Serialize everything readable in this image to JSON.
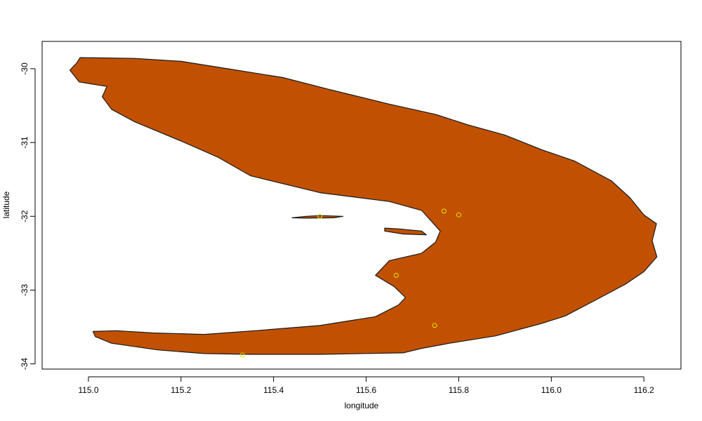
{
  "chart_data": {
    "type": "scatter",
    "title": "",
    "xlabel": "longitude",
    "ylabel": "latitude",
    "xlim": [
      114.9,
      116.28
    ],
    "ylim": [
      -34.07,
      -29.63
    ],
    "x_ticks": [
      115.0,
      115.2,
      115.4,
      115.6,
      115.8,
      116.0,
      116.2
    ],
    "x_tick_labels": [
      "115.0",
      "115.2",
      "115.4",
      "115.6",
      "115.8",
      "116.0",
      "116.2"
    ],
    "y_ticks": [
      -30,
      -31,
      -32,
      -33,
      -34
    ],
    "y_tick_labels": [
      "-30",
      "-31",
      "-32",
      "-33",
      "-34"
    ],
    "grid": false,
    "legend": "none",
    "colors": {
      "land_fill": "#c15100",
      "land_stroke": "#1a1a1a",
      "point_stroke": "#e6e600"
    },
    "land_outline": [
      [
        114.982,
        -29.85
      ],
      [
        115.1,
        -29.86
      ],
      [
        115.2,
        -29.9
      ],
      [
        115.3,
        -30.0
      ],
      [
        115.42,
        -30.12
      ],
      [
        115.52,
        -30.28
      ],
      [
        115.65,
        -30.48
      ],
      [
        115.75,
        -30.62
      ],
      [
        115.82,
        -30.76
      ],
      [
        115.9,
        -30.9
      ],
      [
        115.98,
        -31.1
      ],
      [
        116.05,
        -31.25
      ],
      [
        116.13,
        -31.52
      ],
      [
        116.17,
        -31.75
      ],
      [
        116.2,
        -31.98
      ],
      [
        116.227,
        -32.1
      ],
      [
        116.218,
        -32.33
      ],
      [
        116.228,
        -32.55
      ],
      [
        116.2,
        -32.75
      ],
      [
        116.16,
        -32.92
      ],
      [
        116.1,
        -33.12
      ],
      [
        116.03,
        -33.35
      ],
      [
        115.98,
        -33.45
      ],
      [
        115.88,
        -33.62
      ],
      [
        115.78,
        -33.72
      ],
      [
        115.72,
        -33.79
      ],
      [
        115.68,
        -33.85
      ],
      [
        115.5,
        -33.87
      ],
      [
        115.35,
        -33.87
      ],
      [
        115.25,
        -33.86
      ],
      [
        115.15,
        -33.81
      ],
      [
        115.05,
        -33.72
      ],
      [
        115.015,
        -33.63
      ],
      [
        115.01,
        -33.56
      ],
      [
        115.06,
        -33.55
      ],
      [
        115.14,
        -33.58
      ],
      [
        115.25,
        -33.6
      ],
      [
        115.36,
        -33.55
      ],
      [
        115.5,
        -33.48
      ],
      [
        115.62,
        -33.36
      ],
      [
        115.67,
        -33.2
      ],
      [
        115.685,
        -33.1
      ],
      [
        115.66,
        -32.95
      ],
      [
        115.62,
        -32.8
      ],
      [
        115.65,
        -32.6
      ],
      [
        115.72,
        -32.5
      ],
      [
        115.75,
        -32.35
      ],
      [
        115.76,
        -32.2
      ],
      [
        115.74,
        -32.06
      ],
      [
        115.72,
        -31.92
      ],
      [
        115.65,
        -31.8
      ],
      [
        115.5,
        -31.68
      ],
      [
        115.35,
        -31.45
      ],
      [
        115.28,
        -31.2
      ],
      [
        115.2,
        -30.98
      ],
      [
        115.1,
        -30.72
      ],
      [
        115.05,
        -30.55
      ],
      [
        115.03,
        -30.38
      ],
      [
        115.04,
        -30.24
      ],
      [
        114.98,
        -30.18
      ],
      [
        114.96,
        -30.02
      ],
      [
        114.975,
        -29.92
      ]
    ],
    "islands": [
      [
        [
          115.44,
          -32.02
        ],
        [
          115.47,
          -32.0
        ],
        [
          115.5,
          -31.99
        ],
        [
          115.55,
          -32.0
        ],
        [
          115.53,
          -32.02
        ],
        [
          115.47,
          -32.025
        ]
      ],
      [
        [
          115.64,
          -32.16
        ],
        [
          115.67,
          -32.17
        ],
        [
          115.72,
          -32.2
        ],
        [
          115.73,
          -32.25
        ],
        [
          115.68,
          -32.24
        ],
        [
          115.64,
          -32.2
        ]
      ]
    ],
    "points": [
      {
        "x": 115.768,
        "y": -31.93
      },
      {
        "x": 115.8,
        "y": -31.98
      },
      {
        "x": 115.5,
        "y": -32.0
      },
      {
        "x": 115.665,
        "y": -32.8
      },
      {
        "x": 115.748,
        "y": -33.48
      },
      {
        "x": 115.333,
        "y": -33.88
      }
    ]
  }
}
